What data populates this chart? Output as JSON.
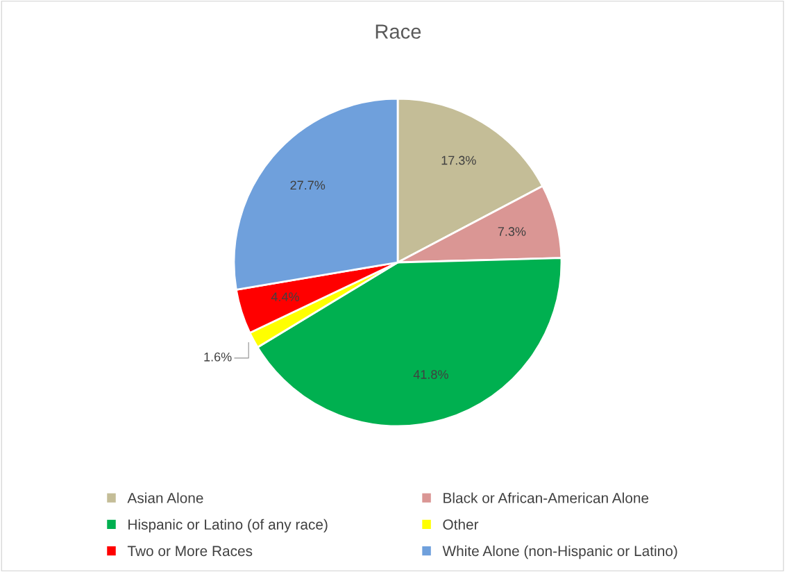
{
  "chart_data": {
    "type": "pie",
    "title": "Race",
    "categories": [
      "Asian Alone",
      "Black or African-American Alone",
      "Hispanic or Latino (of any race)",
      "Other",
      "Two or More Races",
      "White Alone (non-Hispanic or Latino)"
    ],
    "values": [
      17.3,
      7.3,
      41.8,
      1.6,
      4.4,
      27.7
    ],
    "colors": [
      "#c4bd97",
      "#da9694",
      "#00b050",
      "#ffff00",
      "#ff0000",
      "#6fa0dc"
    ],
    "value_labels": [
      "17.3%",
      "7.3%",
      "41.8%",
      "1.6%",
      "4.4%",
      "27.7%"
    ],
    "legend": "bottom"
  }
}
